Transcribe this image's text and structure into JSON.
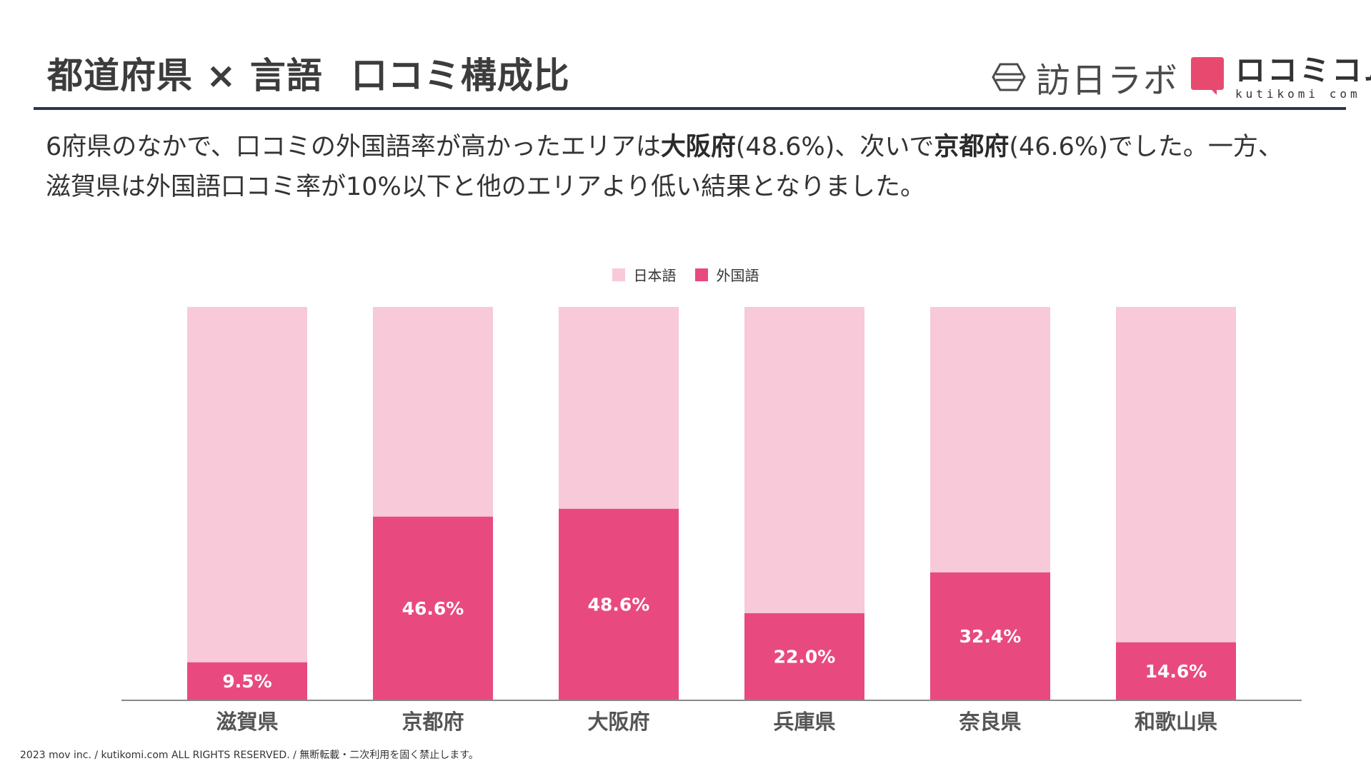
{
  "header": {
    "title_part1": "都道府県 × 言語",
    "title_part2": "口コミ構成比"
  },
  "logos": {
    "logo_a": "訪日ラボ",
    "logo_b_main": "ロコミコム",
    "logo_b_sub": "kutikomi com"
  },
  "description": {
    "line1_a": "6府県のなかで、口コミの外国語率が高かったエリアは",
    "line1_b": "大阪府",
    "line1_c": "(48.6%)、次いで",
    "line1_d": "京都府",
    "line1_e": "(46.6%)でした。一方、",
    "line2": "滋賀県は外国語口コミ率が10%以下と他のエリアより低い結果となりました。"
  },
  "colors": {
    "japanese": "#f8c9d8",
    "foreign": "#e84a7f",
    "rule": "#2b3550",
    "brand": "#e84a6f"
  },
  "chart_data": {
    "type": "bar",
    "stacked": true,
    "categories": [
      "滋賀県",
      "京都府",
      "大阪府",
      "兵庫県",
      "奈良県",
      "和歌山県"
    ],
    "series": [
      {
        "name": "日本語",
        "values": [
          90.5,
          53.4,
          51.4,
          78.0,
          67.6,
          85.4
        ]
      },
      {
        "name": "外国語",
        "values": [
          9.5,
          46.6,
          48.6,
          22.0,
          32.4,
          14.6
        ]
      }
    ],
    "data_labels": [
      "9.5%",
      "46.6%",
      "48.6%",
      "22.0%",
      "32.4%",
      "14.6%"
    ],
    "ylim": [
      0,
      100
    ],
    "grid": false,
    "legend": "top-center"
  },
  "footer": {
    "text": "2023 mov inc. / kutikomi.com ALL RIGHTS RESERVED. / 無断転載・二次利用を固く禁止します。"
  }
}
